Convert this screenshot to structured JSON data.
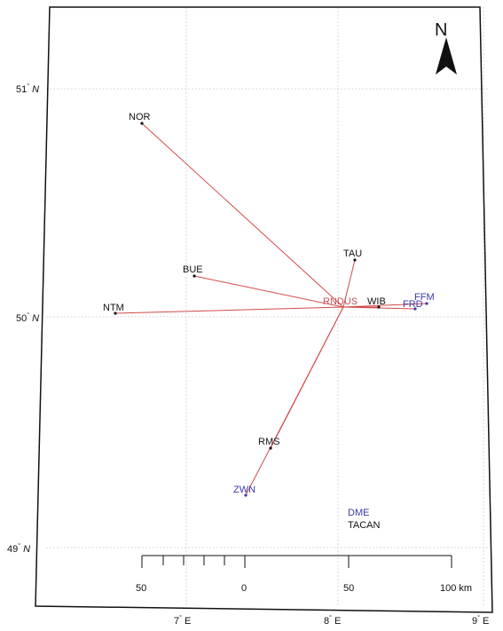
{
  "colors": {
    "route": "#d24a4a",
    "dme": "#3a3aa8",
    "tacan": "#111111",
    "origin": "#c0555a",
    "grid": "#d8d8d8",
    "frame": "#111111"
  },
  "north_arrow": {
    "letter": "N",
    "icon": "north-arrow-icon"
  },
  "graticule": {
    "lat_labels": [
      {
        "deg": "51",
        "hem": "N"
      },
      {
        "deg": "50",
        "hem": "N"
      },
      {
        "deg": "49",
        "hem": "N"
      }
    ],
    "lon_labels": [
      {
        "deg": "7",
        "hem": "E"
      },
      {
        "deg": "8",
        "hem": "E"
      },
      {
        "deg": "9",
        "hem": "E"
      }
    ]
  },
  "origin_station": {
    "name": "RNDUS"
  },
  "stations": [
    {
      "name": "NOR",
      "type": "tacan"
    },
    {
      "name": "BUE",
      "type": "tacan"
    },
    {
      "name": "NTM",
      "type": "tacan"
    },
    {
      "name": "TAU",
      "type": "tacan"
    },
    {
      "name": "WIB",
      "type": "tacan"
    },
    {
      "name": "FRD",
      "type": "dme"
    },
    {
      "name": "FFM",
      "type": "dme"
    },
    {
      "name": "RMS",
      "type": "tacan"
    },
    {
      "name": "ZWN",
      "type": "dme"
    }
  ],
  "legend": {
    "dme": "DME",
    "tacan": "TACAN"
  },
  "scale_bar": {
    "labels": [
      "50",
      "0",
      "50",
      "100 km"
    ]
  }
}
